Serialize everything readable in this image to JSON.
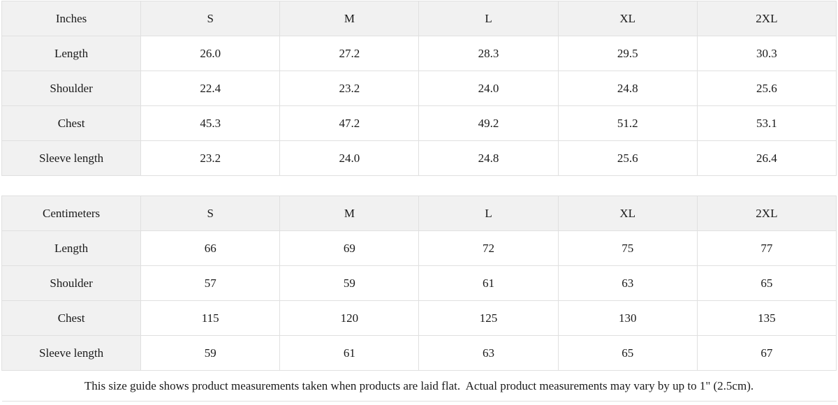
{
  "colors": {
    "header_background": "#f1f1f1",
    "cell_background": "#ffffff",
    "border": "#e0e0e0",
    "text": "#1a1a1a"
  },
  "tables": [
    {
      "unit_label": "Inches",
      "sizes": [
        "S",
        "M",
        "L",
        "XL",
        "2XL"
      ],
      "rows": [
        {
          "label": "Length",
          "values": [
            "26.0",
            "27.2",
            "28.3",
            "29.5",
            "30.3"
          ]
        },
        {
          "label": "Shoulder",
          "values": [
            "22.4",
            "23.2",
            "24.0",
            "24.8",
            "25.6"
          ]
        },
        {
          "label": "Chest",
          "values": [
            "45.3",
            "47.2",
            "49.2",
            "51.2",
            "53.1"
          ]
        },
        {
          "label": "Sleeve length",
          "values": [
            "23.2",
            "24.0",
            "24.8",
            "25.6",
            "26.4"
          ]
        }
      ]
    },
    {
      "unit_label": "Centimeters",
      "sizes": [
        "S",
        "M",
        "L",
        "XL",
        "2XL"
      ],
      "rows": [
        {
          "label": "Length",
          "values": [
            "66",
            "69",
            "72",
            "75",
            "77"
          ]
        },
        {
          "label": "Shoulder",
          "values": [
            "57",
            "59",
            "61",
            "63",
            "65"
          ]
        },
        {
          "label": "Chest",
          "values": [
            "115",
            "120",
            "125",
            "130",
            "135"
          ]
        },
        {
          "label": "Sleeve length",
          "values": [
            "59",
            "61",
            "63",
            "65",
            "67"
          ]
        }
      ]
    }
  ],
  "footer_note": "This size guide shows product measurements taken when products are laid flat.  Actual product measurements may vary by up to 1\" (2.5cm)."
}
